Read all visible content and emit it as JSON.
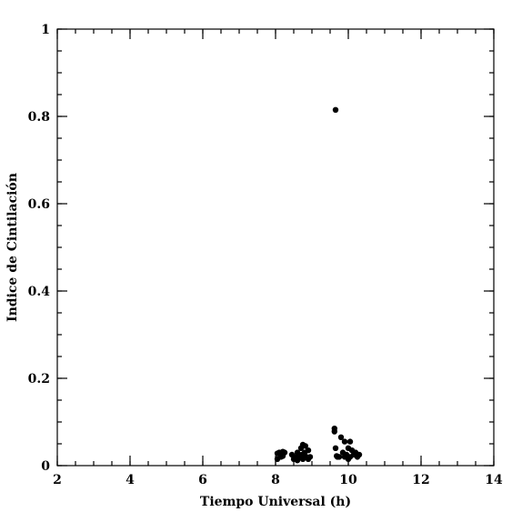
{
  "chart_data": {
    "type": "scatter",
    "xlabel": "Tiempo Universal (h)",
    "ylabel": "Indice de Cintilación",
    "xlim": [
      2,
      14
    ],
    "xticks": [
      2,
      4,
      6,
      8,
      10,
      12,
      14
    ],
    "xminor": 0.5,
    "ylim": [
      0,
      1
    ],
    "yticks": [
      0,
      0.2,
      0.4,
      0.6,
      0.8,
      1
    ],
    "yminor": 0.05,
    "color": "#000000",
    "x": [
      8.05,
      8.05,
      8.1,
      8.15,
      8.2,
      8.2,
      8.25,
      8.45,
      8.5,
      8.55,
      8.6,
      8.65,
      8.7,
      8.72,
      8.75,
      8.8,
      8.82,
      8.85,
      8.9,
      8.9,
      8.95,
      8.6,
      8.75,
      9.62,
      9.62,
      9.65,
      9.68,
      9.7,
      9.8,
      9.85,
      9.9,
      9.9,
      9.95,
      10.0,
      10.05,
      10.05,
      10.1,
      10.15,
      10.2,
      10.25,
      10.3,
      9.75,
      10.0,
      9.65
    ],
    "y": [
      0.015,
      0.028,
      0.03,
      0.02,
      0.032,
      0.022,
      0.03,
      0.025,
      0.015,
      0.02,
      0.03,
      0.018,
      0.04,
      0.025,
      0.048,
      0.03,
      0.045,
      0.02,
      0.035,
      0.015,
      0.02,
      0.012,
      0.015,
      0.085,
      0.078,
      0.04,
      0.022,
      0.02,
      0.065,
      0.03,
      0.02,
      0.055,
      0.025,
      0.04,
      0.055,
      0.02,
      0.035,
      0.025,
      0.03,
      0.02,
      0.025,
      0.02,
      0.015,
      0.815
    ]
  }
}
